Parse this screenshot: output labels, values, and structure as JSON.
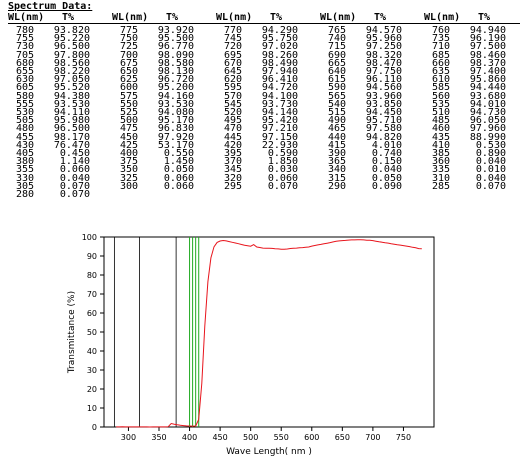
{
  "table": {
    "title": "Spectrum Data:",
    "headers": [
      "WL(nm)",
      "T%"
    ],
    "columns": [
      [
        [
          "780",
          "93.820"
        ],
        [
          "755",
          "95.220"
        ],
        [
          "730",
          "96.500"
        ],
        [
          "705",
          "97.800"
        ],
        [
          "680",
          "98.560"
        ],
        [
          "655",
          "98.220"
        ],
        [
          "630",
          "97.050"
        ],
        [
          "605",
          "95.520"
        ],
        [
          "580",
          "94.380"
        ],
        [
          "555",
          "93.530"
        ],
        [
          "530",
          "94.110"
        ],
        [
          "505",
          "95.980"
        ],
        [
          "480",
          "96.500"
        ],
        [
          "455",
          "98.170"
        ],
        [
          "430",
          "76.470"
        ],
        [
          "405",
          "0.450"
        ],
        [
          "380",
          "1.140"
        ],
        [
          "355",
          "0.060"
        ],
        [
          "330",
          "0.040"
        ],
        [
          "305",
          "0.070"
        ],
        [
          "280",
          "0.070"
        ]
      ],
      [
        [
          "775",
          "93.920"
        ],
        [
          "750",
          "95.500"
        ],
        [
          "725",
          "96.770"
        ],
        [
          "700",
          "98.090"
        ],
        [
          "675",
          "98.580"
        ],
        [
          "650",
          "98.130"
        ],
        [
          "625",
          "96.720"
        ],
        [
          "600",
          "95.200"
        ],
        [
          "575",
          "94.160"
        ],
        [
          "550",
          "93.530"
        ],
        [
          "525",
          "94.080"
        ],
        [
          "500",
          "95.170"
        ],
        [
          "475",
          "96.830"
        ],
        [
          "450",
          "97.920"
        ],
        [
          "425",
          "53.170"
        ],
        [
          "400",
          "0.550"
        ],
        [
          "375",
          "1.450"
        ],
        [
          "350",
          "0.050"
        ],
        [
          "325",
          "0.060"
        ],
        [
          "300",
          "0.060"
        ]
      ],
      [
        [
          "770",
          "94.290"
        ],
        [
          "745",
          "95.750"
        ],
        [
          "720",
          "97.020"
        ],
        [
          "695",
          "98.260"
        ],
        [
          "670",
          "98.490"
        ],
        [
          "645",
          "97.940"
        ],
        [
          "620",
          "96.410"
        ],
        [
          "595",
          "94.720"
        ],
        [
          "570",
          "94.100"
        ],
        [
          "545",
          "93.730"
        ],
        [
          "520",
          "94.140"
        ],
        [
          "495",
          "95.420"
        ],
        [
          "470",
          "97.210"
        ],
        [
          "445",
          "97.150"
        ],
        [
          "420",
          "22.930"
        ],
        [
          "395",
          "0.590"
        ],
        [
          "370",
          "1.850"
        ],
        [
          "345",
          "0.030"
        ],
        [
          "320",
          "0.060"
        ],
        [
          "295",
          "0.070"
        ]
      ],
      [
        [
          "765",
          "94.570"
        ],
        [
          "740",
          "95.960"
        ],
        [
          "715",
          "97.250"
        ],
        [
          "690",
          "98.320"
        ],
        [
          "665",
          "98.470"
        ],
        [
          "640",
          "97.750"
        ],
        [
          "615",
          "96.110"
        ],
        [
          "590",
          "94.560"
        ],
        [
          "565",
          "93.960"
        ],
        [
          "540",
          "93.850"
        ],
        [
          "515",
          "94.450"
        ],
        [
          "490",
          "95.710"
        ],
        [
          "465",
          "97.580"
        ],
        [
          "440",
          "94.820"
        ],
        [
          "415",
          "4.010"
        ],
        [
          "390",
          "0.740"
        ],
        [
          "365",
          "0.150"
        ],
        [
          "340",
          "0.040"
        ],
        [
          "315",
          "0.050"
        ],
        [
          "290",
          "0.090"
        ]
      ],
      [
        [
          "760",
          "94.940"
        ],
        [
          "735",
          "96.190"
        ],
        [
          "710",
          "97.500"
        ],
        [
          "685",
          "98.460"
        ],
        [
          "660",
          "98.370"
        ],
        [
          "635",
          "97.400"
        ],
        [
          "610",
          "95.860"
        ],
        [
          "585",
          "94.440"
        ],
        [
          "560",
          "93.680"
        ],
        [
          "535",
          "94.010"
        ],
        [
          "510",
          "94.730"
        ],
        [
          "485",
          "96.050"
        ],
        [
          "460",
          "97.960"
        ],
        [
          "435",
          "88.990"
        ],
        [
          "410",
          "0.530"
        ],
        [
          "385",
          "0.890"
        ],
        [
          "360",
          "0.040"
        ],
        [
          "335",
          "0.010"
        ],
        [
          "310",
          "0.040"
        ],
        [
          "285",
          "0.070"
        ]
      ]
    ]
  },
  "chart_data": {
    "type": "line",
    "xlabel": "Wave Length( nm )",
    "ylabel": "Transmittance (%)",
    "xlim": [
      260,
      800
    ],
    "ylim": [
      0,
      100
    ],
    "xticks": [
      300,
      350,
      400,
      450,
      500,
      550,
      600,
      650,
      700,
      750
    ],
    "yticks": [
      0,
      10,
      20,
      30,
      40,
      50,
      60,
      70,
      80,
      90,
      100
    ],
    "grid": false,
    "line_color": "#e8141c",
    "marker_color": "#22aa22",
    "series": [
      {
        "x": [
          280,
          285,
          290,
          295,
          300,
          305,
          310,
          315,
          320,
          325,
          330,
          335,
          340,
          345,
          350,
          355,
          360,
          365,
          370,
          375,
          380,
          385,
          390,
          395,
          400,
          405,
          410,
          415,
          420,
          425,
          430,
          435,
          440,
          445,
          450,
          455,
          460,
          465,
          470,
          475,
          480,
          485,
          490,
          495,
          500,
          505,
          510,
          515,
          520,
          525,
          530,
          535,
          540,
          545,
          550,
          555,
          560,
          565,
          570,
          575,
          580,
          585,
          590,
          595,
          600,
          605,
          610,
          615,
          620,
          625,
          630,
          635,
          640,
          645,
          650,
          655,
          660,
          665,
          670,
          675,
          680,
          685,
          690,
          695,
          700,
          705,
          710,
          715,
          720,
          725,
          730,
          735,
          740,
          745,
          750,
          755,
          760,
          765,
          770,
          775,
          780
        ],
        "values": [
          0.07,
          0.07,
          0.09,
          0.07,
          0.06,
          0.07,
          0.04,
          0.05,
          0.06,
          0.06,
          0.04,
          0.01,
          0.04,
          0.03,
          0.05,
          0.06,
          0.04,
          0.15,
          1.85,
          1.45,
          1.14,
          0.89,
          0.74,
          0.59,
          0.55,
          0.45,
          0.53,
          4.01,
          22.93,
          53.17,
          76.47,
          88.99,
          94.82,
          97.15,
          97.92,
          98.17,
          97.96,
          97.58,
          97.21,
          96.83,
          96.5,
          96.05,
          95.71,
          95.42,
          95.17,
          95.98,
          94.73,
          94.45,
          94.14,
          94.08,
          94.11,
          94.01,
          93.85,
          93.73,
          93.53,
          93.53,
          93.68,
          93.96,
          94.1,
          94.16,
          94.38,
          94.44,
          94.56,
          94.72,
          95.2,
          95.52,
          95.86,
          96.11,
          96.41,
          96.72,
          97.05,
          97.4,
          97.75,
          97.94,
          98.13,
          98.22,
          98.37,
          98.47,
          98.49,
          98.58,
          98.56,
          98.46,
          98.32,
          98.26,
          98.09,
          97.8,
          97.5,
          97.25,
          97.02,
          96.77,
          96.5,
          96.19,
          95.96,
          95.75,
          95.5,
          95.22,
          94.94,
          94.57,
          94.29,
          93.92,
          93.82
        ]
      }
    ],
    "black_markers": [
      277,
      318,
      378
    ],
    "green_markers": [
      400,
      405,
      410,
      415
    ]
  }
}
